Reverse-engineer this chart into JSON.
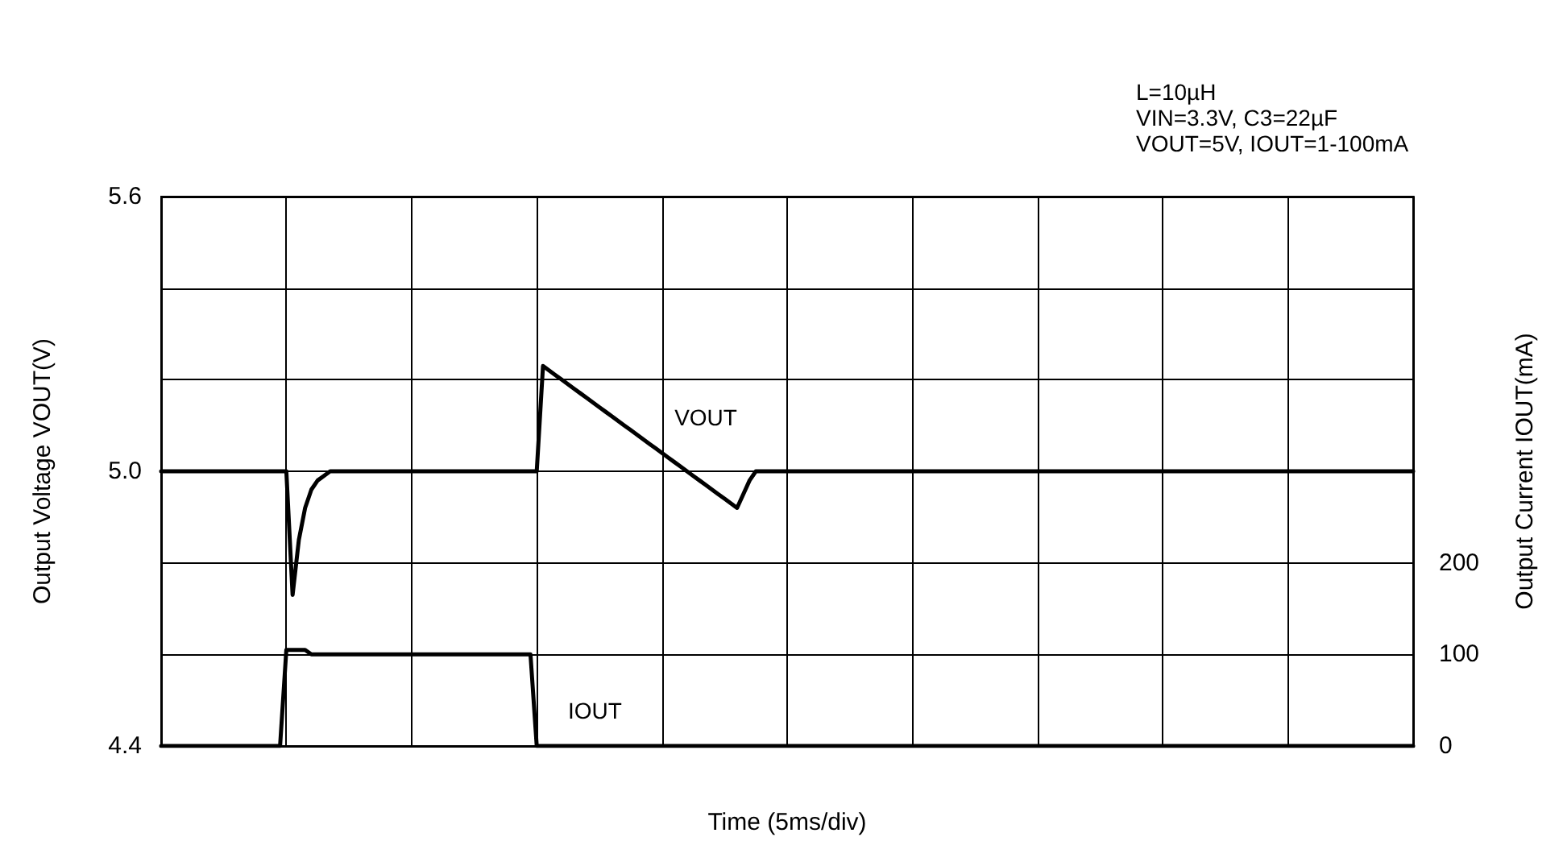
{
  "chart_data": {
    "type": "line",
    "xlabel": "Time (5ms/div)",
    "ylabel": "Output Voltage VOUT(V)",
    "y2label": "Output Current IOUT(mA)",
    "annotations": [
      "L=10µH",
      "VIN=3.3V, C3=22µF",
      "VOUT=5V, IOUT=1-100mA"
    ],
    "categories": [
      null,
      null,
      null,
      null,
      null,
      null,
      null,
      null,
      null,
      null,
      null,
      null,
      null,
      null,
      null,
      null,
      null,
      null,
      null,
      null,
      null,
      null,
      null,
      null,
      null,
      null,
      null,
      null,
      null,
      null,
      null,
      null,
      null,
      null,
      null,
      null,
      null,
      null,
      null,
      null,
      null,
      null,
      null,
      null,
      null,
      null,
      null,
      null,
      null,
      null,
      null,
      null,
      null,
      null,
      null,
      null,
      null,
      null,
      null,
      null,
      null,
      null,
      null,
      null,
      null,
      null,
      null,
      null,
      null,
      null,
      null,
      null,
      null,
      null,
      null,
      null,
      null,
      null,
      null,
      null,
      null,
      null,
      null,
      null,
      null,
      null,
      null,
      null,
      null,
      null,
      null,
      null,
      null,
      null,
      null,
      null,
      null,
      null,
      null,
      null,
      null,
      null,
      null,
      null,
      null,
      null,
      null,
      null,
      null,
      null,
      null,
      null,
      null,
      null,
      null,
      null,
      null,
      null,
      null,
      null,
      null,
      null,
      null,
      null,
      null,
      null,
      null,
      null,
      null,
      null,
      null,
      null,
      null,
      null,
      null,
      null,
      null,
      null,
      null,
      null,
      null,
      null,
      null,
      null,
      null,
      null,
      null,
      null,
      null,
      null,
      null,
      null,
      null,
      null,
      null,
      null,
      null,
      null,
      null,
      null,
      null,
      null,
      null,
      null,
      null,
      null,
      null,
      null,
      null,
      null,
      null,
      null,
      null,
      null,
      null,
      null,
      null,
      null,
      null,
      null,
      null,
      null,
      null,
      null,
      null,
      null,
      null,
      null,
      null,
      null,
      null,
      null,
      null,
      null,
      null,
      null,
      null,
      null,
      null,
      null,
      null
    ],
    "ylim": [
      4.4,
      5.6
    ],
    "yticks": [
      4.4,
      {
        "value": 4.6,
        "label": null
      },
      {
        "value": 4.8,
        "label": null
      },
      {
        "value": 5.0,
        "label": "5.0"
      },
      {
        "value": 5.2,
        "label": null
      },
      {
        "value": 5.4,
        "label": null
      },
      5.6
    ],
    "y2lim": [
      0,
      600
    ],
    "y2ticks": [
      0,
      100,
      200
    ],
    "tick_labels": "y",
    "grid": true,
    "legend": false,
    "line_style": "solid",
    "series": [
      {
        "name": "VOUT",
        "color": "#000000",
        "values": [
          5.0,
          5.0,
          5.0,
          5.0,
          5.0,
          5.0,
          5.0,
          5.0,
          5.0,
          5.0,
          5.0,
          5.0,
          5.0,
          5.0,
          5.0,
          5.0,
          5.0,
          5.0,
          5.0,
          5.0,
          5.0,
          4.73,
          4.85,
          4.92,
          4.96,
          4.98,
          4.99,
          5.0,
          5.0,
          5.0,
          5.0,
          5.0,
          5.0,
          5.0,
          5.0,
          5.0,
          5.0,
          5.0,
          5.0,
          5.0,
          5.0,
          5.0,
          5.0,
          5.0,
          5.0,
          5.0,
          5.0,
          5.0,
          5.0,
          5.0,
          5.0,
          5.0,
          5.0,
          5.0,
          5.0,
          5.0,
          5.0,
          5.0,
          5.0,
          5.0,
          5.0,
          5.23,
          5.22,
          5.21,
          5.2,
          5.19,
          5.18,
          5.17,
          5.16,
          5.15,
          5.14,
          5.13,
          5.12,
          5.11,
          5.1,
          5.09,
          5.08,
          5.07,
          5.06,
          5.05,
          5.04,
          5.03,
          5.02,
          5.01,
          5.0,
          4.99,
          4.98,
          4.97,
          4.96,
          4.95,
          4.94,
          4.93,
          4.92,
          4.95,
          4.98,
          5.0,
          5.0,
          5.0,
          5.0,
          5.0,
          5.0,
          5.0,
          5.0,
          5.0,
          5.0,
          5.0,
          5.0,
          5.0,
          5.0,
          5.0,
          5.0,
          5.0,
          5.0,
          5.0,
          5.0,
          5.0,
          5.0,
          5.0,
          5.0,
          5.0,
          5.0,
          5.0,
          5.0,
          5.0,
          5.0,
          5.0,
          5.0,
          5.0,
          5.0,
          5.0,
          5.0,
          5.0,
          5.0,
          5.0,
          5.0,
          5.0,
          5.0,
          5.0,
          5.0,
          5.0,
          5.0,
          5.0,
          5.0,
          5.0,
          5.0,
          5.0,
          5.0,
          5.0,
          5.0,
          5.0,
          5.0,
          5.0,
          5.0,
          5.0,
          5.0,
          5.0,
          5.0,
          5.0,
          5.0,
          5.0,
          5.0,
          5.0,
          5.0,
          5.0,
          5.0,
          5.0,
          5.0,
          5.0,
          5.0,
          5.0,
          5.0,
          5.0,
          5.0,
          5.0,
          5.0,
          5.0,
          5.0,
          5.0,
          5.0,
          5.0,
          5.0,
          5.0,
          5.0,
          5.0,
          5.0,
          5.0,
          5.0,
          5.0,
          5.0,
          5.0,
          5.0,
          5.0,
          5.0,
          5.0,
          5.0,
          5.0,
          5.0,
          5.0,
          5.0,
          5.0,
          5.0
        ]
      },
      {
        "name": "IOUT",
        "color": "#000000",
        "axis": "y2",
        "values": [
          0,
          0,
          0,
          0,
          0,
          0,
          0,
          0,
          0,
          0,
          0,
          0,
          0,
          0,
          0,
          0,
          0,
          0,
          0,
          0,
          105,
          105,
          105,
          105,
          100,
          100,
          100,
          100,
          100,
          100,
          100,
          100,
          100,
          100,
          100,
          100,
          100,
          100,
          100,
          100,
          100,
          100,
          100,
          100,
          100,
          100,
          100,
          100,
          100,
          100,
          100,
          100,
          100,
          100,
          100,
          100,
          100,
          100,
          100,
          100,
          0,
          0,
          0,
          0,
          0,
          0,
          0,
          0,
          0,
          0,
          0,
          0,
          0,
          0,
          0,
          0,
          0,
          0,
          0,
          0,
          0,
          0,
          0,
          0,
          0,
          0,
          0,
          0,
          0,
          0,
          0,
          0,
          0,
          0,
          0,
          0,
          0,
          0,
          0,
          0,
          0,
          0,
          0,
          0,
          0,
          0,
          0,
          0,
          0,
          0,
          0,
          0,
          0,
          0,
          0,
          0,
          0,
          0,
          0,
          0,
          0,
          0,
          0,
          0,
          0,
          0,
          0,
          0,
          0,
          0,
          0,
          0,
          0,
          0,
          0,
          0,
          0,
          0,
          0,
          0,
          0,
          0,
          0,
          0,
          0,
          0,
          0,
          0,
          0,
          0,
          0,
          0,
          0,
          0,
          0,
          0,
          0,
          0,
          0,
          0,
          0,
          0,
          0,
          0,
          0,
          0,
          0,
          0,
          0,
          0,
          0,
          0,
          0,
          0,
          0,
          0,
          0,
          0,
          0,
          0,
          0,
          0,
          0,
          0,
          0,
          0,
          0,
          0,
          0,
          0,
          0,
          0,
          0,
          0,
          0,
          0,
          0,
          0,
          0,
          0,
          0
        ]
      }
    ]
  }
}
